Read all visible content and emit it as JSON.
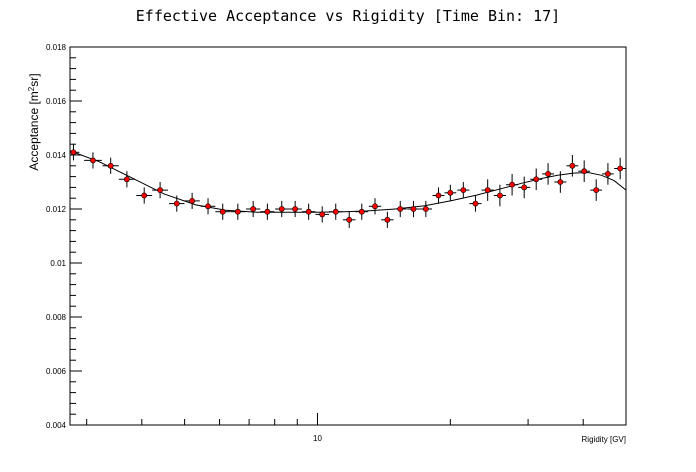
{
  "chart_data": {
    "type": "scatter",
    "title": "Effective Acceptance vs Rigidity [Time Bin: 17]",
    "xlabel": "Rigidity [GV]",
    "ylabel_main": "Acceptance [m",
    "ylabel_sup": "2",
    "ylabel_tail": "sr]",
    "x_scale": "log",
    "xlim": [
      2.75,
      50
    ],
    "ylim": [
      0.004,
      0.018
    ],
    "y_ticks": [
      0.004,
      0.006,
      0.008,
      0.01,
      0.012,
      0.014,
      0.016,
      0.018
    ],
    "y_tick_labels": [
      "0.004",
      "0.006",
      "0.008",
      "0.01",
      "0.012",
      "0.014",
      "0.016",
      "0.018"
    ],
    "x_tick_labels": [
      {
        "value": 10,
        "label": "10"
      }
    ],
    "grid": false,
    "legend": "none",
    "marker_color": "#ff0000",
    "fit_color": "#000000",
    "series": [
      {
        "x": [
          2.8,
          3.1,
          3.4,
          3.7,
          4.05,
          4.4,
          4.8,
          5.2,
          5.65,
          6.1,
          6.6,
          7.15,
          7.7,
          8.3,
          8.9,
          9.55,
          10.25,
          11.0,
          11.8,
          12.6,
          13.5,
          14.4,
          15.4,
          16.5,
          17.6,
          18.8,
          20.0,
          21.4,
          22.8,
          24.3,
          25.9,
          27.6,
          29.4,
          31.3,
          33.3,
          35.5,
          37.8,
          40.2,
          42.8,
          45.5,
          48.5
        ],
        "y": [
          0.0141,
          0.0138,
          0.0136,
          0.0131,
          0.0125,
          0.0127,
          0.0122,
          0.0123,
          0.0121,
          0.0119,
          0.0119,
          0.012,
          0.0119,
          0.012,
          0.012,
          0.0119,
          0.0118,
          0.0119,
          0.0116,
          0.0119,
          0.0121,
          0.0116,
          0.012,
          0.012,
          0.012,
          0.0125,
          0.0126,
          0.0127,
          0.0122,
          0.0127,
          0.0125,
          0.0129,
          0.0128,
          0.0131,
          0.0133,
          0.013,
          0.0136,
          0.0134,
          0.0127,
          0.0133,
          0.0135
        ],
        "yerr": [
          0.0003,
          0.0003,
          0.0003,
          0.0003,
          0.0003,
          0.0003,
          0.0003,
          0.0003,
          0.0003,
          0.0003,
          0.0003,
          0.0003,
          0.0003,
          0.0003,
          0.0003,
          0.0003,
          0.0003,
          0.0003,
          0.0003,
          0.0003,
          0.0003,
          0.0003,
          0.0003,
          0.0003,
          0.0003,
          0.0003,
          0.0003,
          0.0003,
          0.0003,
          0.0004,
          0.0004,
          0.0004,
          0.0004,
          0.0004,
          0.0004,
          0.0004,
          0.0004,
          0.0004,
          0.0004,
          0.0004,
          0.0004
        ]
      }
    ],
    "fit_curve": {
      "x": [
        2.75,
        3.2,
        3.8,
        4.5,
        5.3,
        6.2,
        7.3,
        8.5,
        10.0,
        11.5,
        13.0,
        15.0,
        17.5,
        20.0,
        23.0,
        26.0,
        29.0,
        32.0,
        35.0,
        38.0,
        41.0,
        44.0,
        47.0,
        50.0
      ],
      "y": [
        0.01415,
        0.01375,
        0.01315,
        0.01255,
        0.01215,
        0.01195,
        0.01188,
        0.01188,
        0.01188,
        0.0119,
        0.01193,
        0.012,
        0.01212,
        0.0123,
        0.01252,
        0.01275,
        0.01295,
        0.01312,
        0.01325,
        0.01333,
        0.01335,
        0.01325,
        0.01305,
        0.0127
      ]
    }
  }
}
